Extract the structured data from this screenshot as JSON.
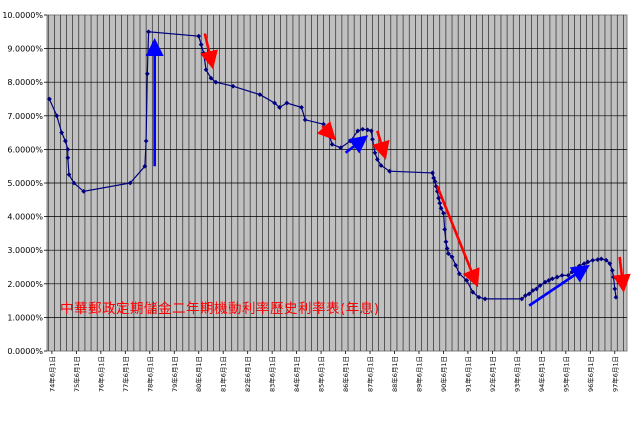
{
  "chart_data": {
    "type": "line",
    "title": "中華郵政定期儲金二年期機動利率歷史利率表(年息)",
    "xlabel": "",
    "ylabel": "",
    "ylim": [
      0,
      10
    ],
    "grid": true,
    "legend": "none",
    "y_tick_labels": [
      "0.0000%",
      "1.0000%",
      "2.0000%",
      "3.0000%",
      "4.0000%",
      "5.0000%",
      "6.0000%",
      "7.0000%",
      "8.0000%",
      "9.0000%",
      "10.0000%"
    ],
    "x_tick_labels": [
      "74年6月1日",
      "75年6月1日",
      "76年6月1日",
      "77年6月1日",
      "78年6月1日",
      "79年6月1日",
      "80年6月1日",
      "81年6月1日",
      "82年6月1日",
      "83年6月1日",
      "84年6月1日",
      "85年6月1日",
      "86年6月1日",
      "87年6月1日",
      "88年6月1日",
      "89年6月1日",
      "90年6月1日",
      "91年6月1日",
      "92年6月1日",
      "93年6月1日",
      "94年6月1日",
      "95年6月1日",
      "96年6月1日",
      "97年6月1日"
    ],
    "x_range": [
      1985.2,
      2008.9
    ],
    "series": [
      {
        "color": "#000080",
        "points": [
          [
            1985.3,
            7.5
          ],
          [
            1985.6,
            7.0
          ],
          [
            1985.8,
            6.5
          ],
          [
            1985.95,
            6.25
          ],
          [
            1986.05,
            6.0
          ],
          [
            1986.05,
            5.75
          ],
          [
            1986.1,
            5.25
          ],
          [
            1986.3,
            5.0
          ],
          [
            1986.7,
            4.75
          ],
          [
            1988.6,
            5.0
          ],
          [
            1989.2,
            5.5
          ],
          [
            1989.25,
            6.25
          ],
          [
            1989.3,
            8.25
          ],
          [
            1989.35,
            9.5
          ],
          [
            1991.4,
            9.37
          ],
          [
            1991.5,
            9.12
          ],
          [
            1991.6,
            8.87
          ],
          [
            1991.7,
            8.37
          ],
          [
            1991.9,
            8.12
          ],
          [
            1992.1,
            8.0
          ],
          [
            1992.8,
            7.88
          ],
          [
            1993.9,
            7.63
          ],
          [
            1994.5,
            7.38
          ],
          [
            1994.7,
            7.25
          ],
          [
            1995.0,
            7.38
          ],
          [
            1995.6,
            7.25
          ],
          [
            1995.75,
            6.88
          ],
          [
            1996.5,
            6.75
          ],
          [
            1996.6,
            6.5
          ],
          [
            1996.75,
            6.38
          ],
          [
            1996.85,
            6.15
          ],
          [
            1997.2,
            6.05
          ],
          [
            1997.6,
            6.25
          ],
          [
            1997.9,
            6.55
          ],
          [
            1998.1,
            6.6
          ],
          [
            1998.3,
            6.58
          ],
          [
            1998.45,
            6.55
          ],
          [
            1998.5,
            6.3
          ],
          [
            1998.6,
            5.9
          ],
          [
            1998.7,
            5.7
          ],
          [
            1998.85,
            5.52
          ],
          [
            1999.2,
            5.35
          ],
          [
            2000.95,
            5.3
          ],
          [
            2001.0,
            5.15
          ],
          [
            2001.05,
            5.05
          ],
          [
            2001.1,
            4.9
          ],
          [
            2001.15,
            4.75
          ],
          [
            2001.2,
            4.55
          ],
          [
            2001.25,
            4.4
          ],
          [
            2001.3,
            4.25
          ],
          [
            2001.4,
            4.1
          ],
          [
            2001.45,
            3.62
          ],
          [
            2001.5,
            3.25
          ],
          [
            2001.55,
            3.05
          ],
          [
            2001.6,
            2.9
          ],
          [
            2001.75,
            2.8
          ],
          [
            2001.9,
            2.55
          ],
          [
            2002.05,
            2.3
          ],
          [
            2002.35,
            2.1
          ],
          [
            2002.6,
            1.75
          ],
          [
            2002.85,
            1.6
          ],
          [
            2003.1,
            1.55
          ],
          [
            2004.6,
            1.55
          ],
          [
            2004.75,
            1.65
          ],
          [
            2004.9,
            1.7
          ],
          [
            2005.05,
            1.8
          ],
          [
            2005.2,
            1.85
          ],
          [
            2005.35,
            1.95
          ],
          [
            2005.55,
            2.05
          ],
          [
            2005.7,
            2.1
          ],
          [
            2005.85,
            2.15
          ],
          [
            2006.05,
            2.2
          ],
          [
            2006.25,
            2.25
          ],
          [
            2006.5,
            2.25
          ],
          [
            2006.65,
            2.35
          ],
          [
            2006.8,
            2.45
          ],
          [
            2006.95,
            2.53
          ],
          [
            2007.15,
            2.6
          ],
          [
            2007.3,
            2.65
          ],
          [
            2007.5,
            2.7
          ],
          [
            2007.7,
            2.72
          ],
          [
            2007.85,
            2.74
          ],
          [
            2008.05,
            2.7
          ],
          [
            2008.2,
            2.6
          ],
          [
            2008.3,
            2.4
          ],
          [
            2008.35,
            2.2
          ],
          [
            2008.4,
            1.85
          ],
          [
            2008.45,
            1.6
          ]
        ]
      }
    ],
    "annotations": [
      {
        "color": "#0000ff",
        "from": [
          1989.6,
          5.5
        ],
        "to": [
          1989.6,
          9.2
        ]
      },
      {
        "color": "#ff0000",
        "from": [
          1991.65,
          9.45
        ],
        "to": [
          1991.95,
          8.5
        ]
      },
      {
        "color": "#ff0000",
        "from": [
          1996.45,
          6.7
        ],
        "to": [
          1996.9,
          6.35
        ]
      },
      {
        "color": "#0000ff",
        "from": [
          1997.4,
          5.9
        ],
        "to": [
          1998.2,
          6.35
        ]
      },
      {
        "color": "#ff0000",
        "from": [
          1998.7,
          6.55
        ],
        "to": [
          1999.0,
          5.8
        ]
      },
      {
        "color": "#ff0000",
        "from": [
          2001.15,
          4.9
        ],
        "to": [
          2002.75,
          2.0
        ]
      },
      {
        "color": "#0000ff",
        "from": [
          2004.9,
          1.35
        ],
        "to": [
          2007.25,
          2.5
        ]
      },
      {
        "color": "#ff0000",
        "from": [
          2008.6,
          2.8
        ],
        "to": [
          2008.75,
          1.85
        ]
      }
    ]
  }
}
